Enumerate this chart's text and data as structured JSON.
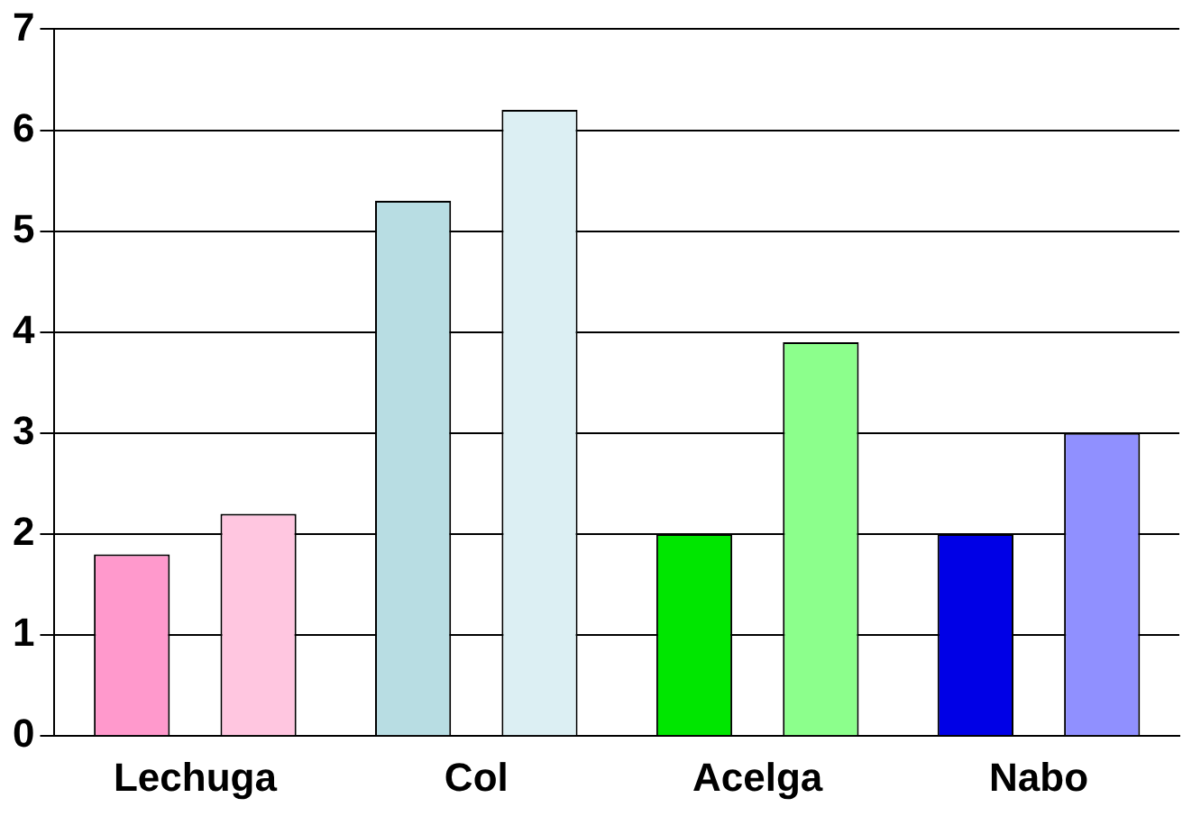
{
  "chart_data": {
    "type": "bar",
    "categories": [
      "Lechuga",
      "Col",
      "Acelga",
      "Nabo"
    ],
    "series": [
      {
        "colors": [
          "#ff99cc",
          "#b8dde3",
          "#00e600",
          "#0000e6"
        ],
        "values": [
          1.8,
          5.3,
          2.0,
          2.0
        ]
      },
      {
        "colors": [
          "#ffc6e0",
          "#dceff3",
          "#8cff8c",
          "#9090ff"
        ],
        "values": [
          2.2,
          6.2,
          3.9,
          3.0
        ]
      }
    ],
    "ylim": [
      0,
      7
    ],
    "yticks": [
      0,
      1,
      2,
      3,
      4,
      5,
      6,
      7
    ],
    "grid": "y",
    "legend": false
  }
}
